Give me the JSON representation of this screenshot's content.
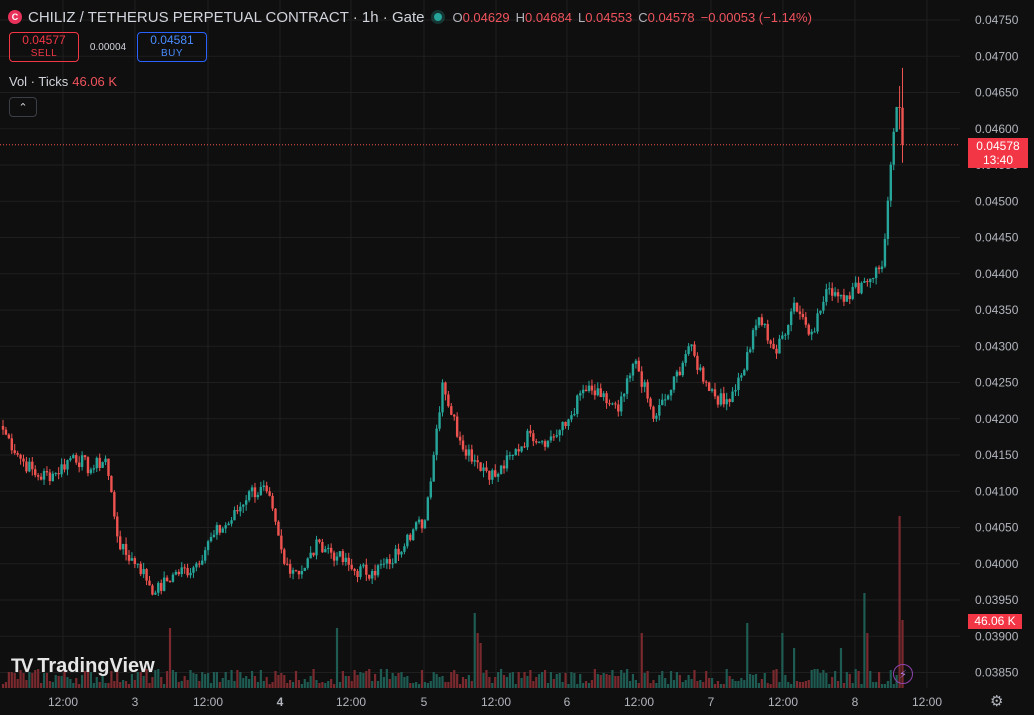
{
  "header": {
    "logo_letter": "C",
    "title": "CHILIZ / TETHERUS PERPETUAL CONTRACT · 1h · Gate",
    "ohlc": {
      "o_label": "O",
      "o": "0.04629",
      "h_label": "H",
      "h": "0.04684",
      "l_label": "L",
      "l": "0.04553",
      "c_label": "C",
      "c": "0.04578",
      "change": "−0.00053 (−1.14%)"
    }
  },
  "trade": {
    "sell_price": "0.04577",
    "sell_label": "SELL",
    "spread": "0.00004",
    "buy_price": "0.04581",
    "buy_label": "BUY"
  },
  "volume_legend": {
    "label": "Vol · Ticks",
    "value": "46.06 K"
  },
  "collapse_icon": "chevron-up-icon",
  "branding": {
    "name": "TradingView",
    "mark": "TV"
  },
  "price_tag": {
    "price": "0.04578",
    "countdown": "13:40"
  },
  "volume_tag": "46.06 K",
  "colors": {
    "up": "#26a69a",
    "down": "#ef5350",
    "up_vol": "#1e5b52",
    "down_vol": "#7a2a2e",
    "grid": "#1f1f1f",
    "background": "#0f0f0f"
  },
  "chart_data": {
    "type": "candlestick",
    "interval": "1h",
    "ylim": [
      0.03825,
      0.04765
    ],
    "y_ticks": [
      "0.03850",
      "0.03900",
      "0.03950",
      "0.04000",
      "0.04050",
      "0.04100",
      "0.04150",
      "0.04200",
      "0.04250",
      "0.04300",
      "0.04350",
      "0.04400",
      "0.04450",
      "0.04500",
      "0.04550",
      "0.04600",
      "0.04650",
      "0.04700",
      "0.04750"
    ],
    "x_ticks": [
      "12:00",
      "3",
      "12:00",
      "4",
      "12:00",
      "5",
      "12:00",
      "6",
      "12:00",
      "7",
      "12:00",
      "8",
      "12:00"
    ],
    "close_anchors": [
      [
        0,
        0.04185
      ],
      [
        6,
        0.04145
      ],
      [
        12,
        0.0412
      ],
      [
        18,
        0.04125
      ],
      [
        24,
        0.0415
      ],
      [
        30,
        0.0413
      ],
      [
        35,
        0.04145
      ],
      [
        40,
        0.0402
      ],
      [
        46,
        0.04
      ],
      [
        52,
        0.0396
      ],
      [
        58,
        0.03985
      ],
      [
        65,
        0.03995
      ],
      [
        72,
        0.0404
      ],
      [
        78,
        0.0406
      ],
      [
        84,
        0.041
      ],
      [
        90,
        0.041
      ],
      [
        96,
        0.04
      ],
      [
        102,
        0.0399
      ],
      [
        108,
        0.0403
      ],
      [
        114,
        0.0401
      ],
      [
        120,
        0.0399
      ],
      [
        126,
        0.0399
      ],
      [
        132,
        0.04
      ],
      [
        138,
        0.0404
      ],
      [
        144,
        0.0406
      ],
      [
        150,
        0.0425
      ],
      [
        156,
        0.0417
      ],
      [
        162,
        0.0414
      ],
      [
        168,
        0.0412
      ],
      [
        174,
        0.0415
      ],
      [
        180,
        0.0418
      ],
      [
        186,
        0.0417
      ],
      [
        192,
        0.0419
      ],
      [
        198,
        0.0424
      ],
      [
        204,
        0.0423
      ],
      [
        210,
        0.0421
      ],
      [
        216,
        0.0428
      ],
      [
        222,
        0.042
      ],
      [
        228,
        0.0424
      ],
      [
        234,
        0.043
      ],
      [
        240,
        0.0425
      ],
      [
        246,
        0.0422
      ],
      [
        252,
        0.0426
      ],
      [
        258,
        0.0434
      ],
      [
        264,
        0.0429
      ],
      [
        270,
        0.0436
      ],
      [
        276,
        0.0432
      ],
      [
        282,
        0.0438
      ],
      [
        288,
        0.0437
      ],
      [
        294,
        0.0439
      ],
      [
        300,
        0.0441
      ],
      [
        305,
        0.0463
      ],
      [
        307,
        0.04578
      ]
    ],
    "last": {
      "open": 0.04629,
      "high": 0.04684,
      "low": 0.04553,
      "close": 0.04578
    },
    "volume_last": "46.06 K"
  }
}
